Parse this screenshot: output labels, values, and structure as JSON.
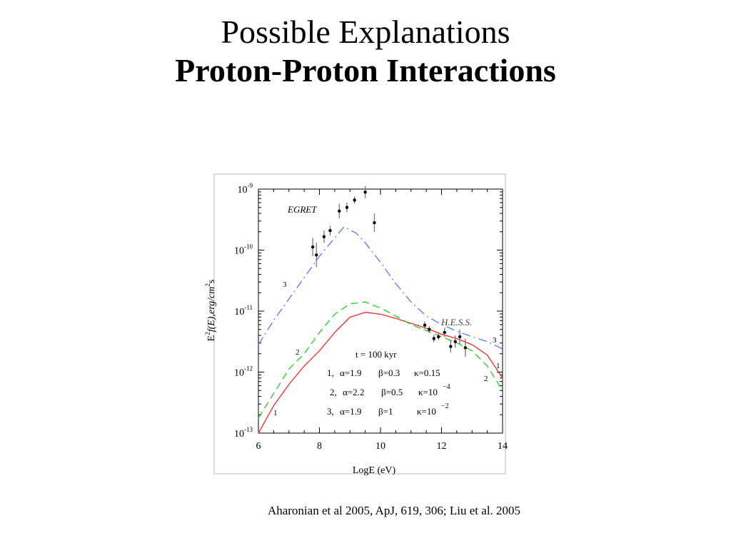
{
  "slide": {
    "title_line1": "Possible Explanations",
    "title_line2": "Proton-Proton Interactions",
    "citation": "Aharonian et al 2005, ApJ, 619, 306; Liu et al. 2005"
  },
  "chart_data": {
    "type": "line",
    "xlabel": "LogE (eV)",
    "ylabel_parts": {
      "E": "E",
      "sup1": "2",
      "mid": "f(E),erg/cm",
      "sup2": "2",
      "tail": "s"
    },
    "xlim": [
      6,
      14
    ],
    "ylim_log10": [
      -13,
      -9
    ],
    "x_ticks": [
      6,
      8,
      10,
      12,
      14
    ],
    "y_ticks": [
      {
        "exp": -9,
        "base": "10",
        "sup": "-9"
      },
      {
        "exp": -10,
        "base": "10",
        "sup": "-10"
      },
      {
        "exp": -11,
        "base": "10",
        "sup": "-11"
      },
      {
        "exp": -12,
        "base": "10",
        "sup": "-12"
      },
      {
        "exp": -13,
        "base": "10",
        "sup": "-13"
      }
    ],
    "annotations": {
      "egret": "EGRET",
      "hess": "H.E.S.S.",
      "t_label": "t = 100 kyr",
      "legend_lines": [
        {
          "num": "1,",
          "alpha": "α=1.9",
          "beta": "β=0.3",
          "kappa": "κ=0.15",
          "kappa_sup": ""
        },
        {
          "num": "2,",
          "alpha": "α=2.2",
          "beta": "β=0.5",
          "kappa": "κ=10",
          "kappa_sup": "−4"
        },
        {
          "num": "3,",
          "alpha": "α=1.9",
          "beta": "β=1",
          "kappa": "κ=10",
          "kappa_sup": "−2"
        }
      ]
    },
    "series": [
      {
        "label": "1",
        "color": "#ff2a2a",
        "dash": "solid",
        "points": [
          [
            6,
            -13.0
          ],
          [
            6.5,
            -12.55
          ],
          [
            7,
            -12.2
          ],
          [
            7.5,
            -11.9
          ],
          [
            8,
            -11.65
          ],
          [
            8.5,
            -11.35
          ],
          [
            9,
            -11.1
          ],
          [
            9.5,
            -11.02
          ],
          [
            10,
            -11.05
          ],
          [
            10.5,
            -11.12
          ],
          [
            11,
            -11.2
          ],
          [
            11.5,
            -11.28
          ],
          [
            12,
            -11.38
          ],
          [
            12.5,
            -11.45
          ],
          [
            13,
            -11.55
          ],
          [
            13.5,
            -11.72
          ],
          [
            14,
            -12.1
          ]
        ]
      },
      {
        "label": "2",
        "color": "#22cc22",
        "dash": "dashed",
        "points": [
          [
            6,
            -12.75
          ],
          [
            6.5,
            -12.35
          ],
          [
            7,
            -11.95
          ],
          [
            7.5,
            -11.7
          ],
          [
            8,
            -11.35
          ],
          [
            8.5,
            -11.05
          ],
          [
            9,
            -10.88
          ],
          [
            9.5,
            -10.85
          ],
          [
            10,
            -10.95
          ],
          [
            10.5,
            -11.08
          ],
          [
            11,
            -11.22
          ],
          [
            11.5,
            -11.32
          ],
          [
            12,
            -11.42
          ],
          [
            12.5,
            -11.52
          ],
          [
            13,
            -11.65
          ],
          [
            13.5,
            -11.9
          ],
          [
            14,
            -12.3
          ]
        ]
      },
      {
        "label": "3",
        "color": "#5577ff",
        "dash": "dashdot",
        "points": [
          [
            6,
            -11.55
          ],
          [
            6.5,
            -11.15
          ],
          [
            7,
            -10.8
          ],
          [
            7.5,
            -10.45
          ],
          [
            8,
            -10.1
          ],
          [
            8.5,
            -9.8
          ],
          [
            8.8,
            -9.62
          ],
          [
            9.2,
            -9.72
          ],
          [
            9.5,
            -9.88
          ],
          [
            10,
            -10.2
          ],
          [
            10.5,
            -10.55
          ],
          [
            11,
            -10.85
          ],
          [
            11.5,
            -11.08
          ],
          [
            12,
            -11.22
          ],
          [
            12.5,
            -11.33
          ],
          [
            13,
            -11.42
          ],
          [
            13.5,
            -11.5
          ],
          [
            14,
            -11.62
          ]
        ]
      }
    ],
    "egret_points": [
      [
        7.78,
        -9.95,
        0.15,
        0.15
      ],
      [
        7.9,
        -10.08,
        0.2,
        0.2
      ],
      [
        8.15,
        -9.78,
        0.1,
        0.1
      ],
      [
        8.35,
        -9.68,
        0.08,
        0.08
      ],
      [
        8.65,
        -9.36,
        0.12,
        0.12
      ],
      [
        8.9,
        -9.3,
        0.08,
        0.08
      ],
      [
        9.15,
        -9.18,
        0.06,
        0.06
      ],
      [
        9.5,
        -9.05,
        0.1,
        0.1
      ],
      [
        9.8,
        -9.55,
        0.15,
        0.15
      ]
    ],
    "hess_points": [
      [
        11.45,
        -11.23,
        0.06,
        0.06
      ],
      [
        11.6,
        -11.3,
        0.05,
        0.05
      ],
      [
        11.75,
        -11.45,
        0.06,
        0.06
      ],
      [
        11.9,
        -11.42,
        0.05,
        0.05
      ],
      [
        12.1,
        -11.35,
        0.08,
        0.08
      ],
      [
        12.3,
        -11.58,
        0.1,
        0.1
      ],
      [
        12.45,
        -11.5,
        0.1,
        0.1
      ],
      [
        12.6,
        -11.42,
        0.12,
        0.12
      ],
      [
        12.78,
        -11.6,
        0.15,
        0.15
      ]
    ]
  }
}
